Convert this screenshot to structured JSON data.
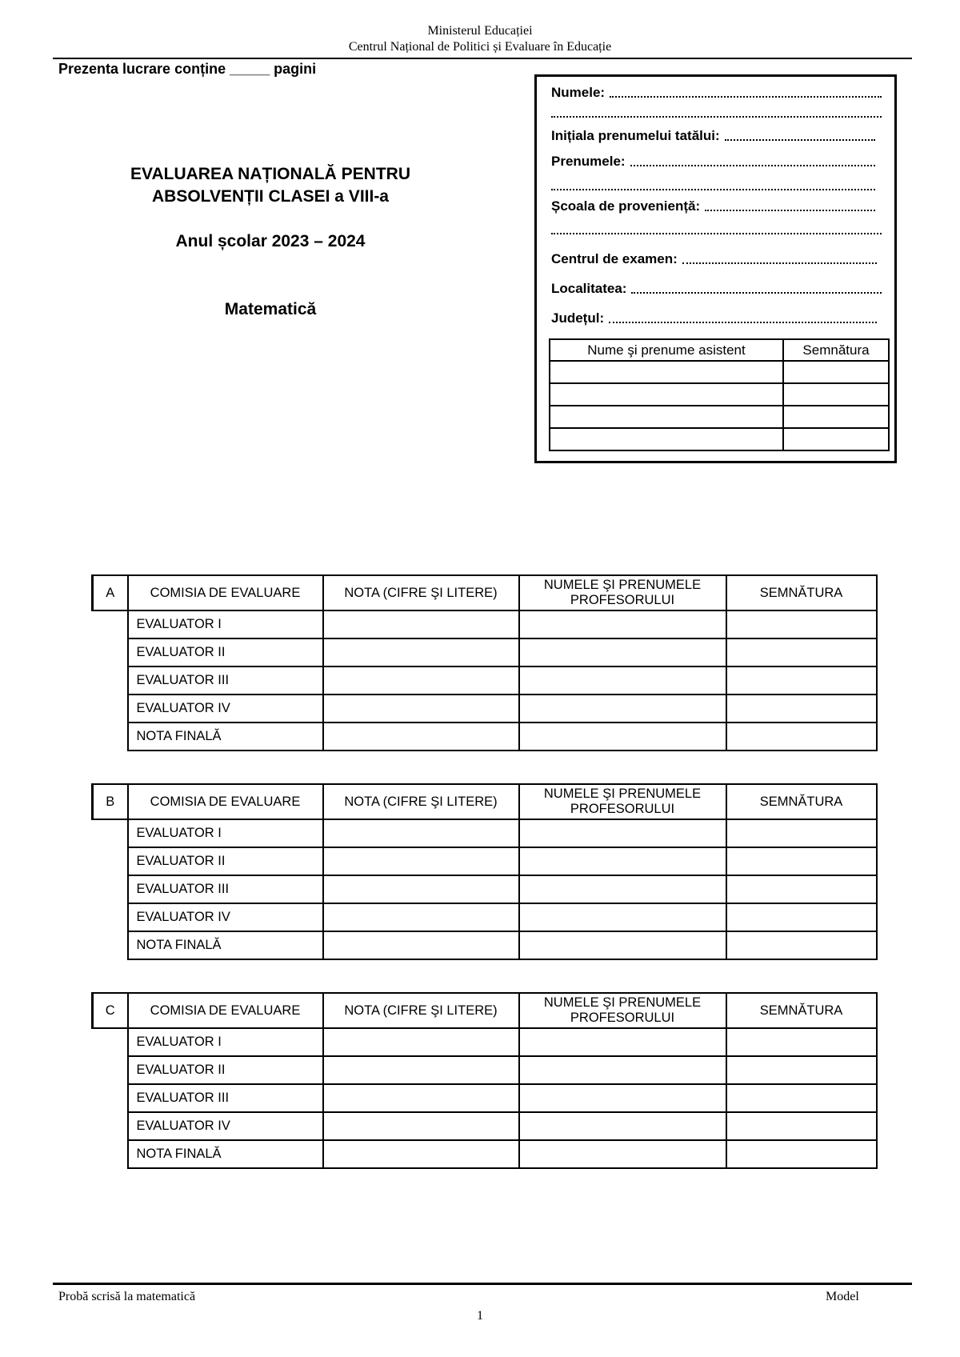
{
  "header": {
    "line1": "Ministerul Educației",
    "line2": "Centrul Național de Politici și Evaluare în Educație"
  },
  "pages_note": "Prezenta lucrare conține _____ pagini",
  "title": {
    "line1": "EVALUAREA NAȚIONALĂ PENTRU",
    "line2": "ABSOLVENȚII CLASEI a VIII-a",
    "year": "Anul școlar 2023 – 2024",
    "subject": "Matematică"
  },
  "student_box": {
    "fields": {
      "numele": "Numele:",
      "initiala": "Inițiala prenumelui tatălui:",
      "prenumele": "Prenumele:",
      "scoala": "Școala de proveniență:",
      "centrul": "Centrul de examen:",
      "localitatea": "Localitatea:",
      "judetul": "Județul:"
    },
    "assistant_table": {
      "headers": [
        "Nume şi prenume asistent",
        "Semnătura"
      ]
    }
  },
  "evaluation_tables": [
    {
      "letter": "A",
      "headers": [
        "COMISIA DE EVALUARE",
        "NOTA (CIFRE ŞI LITERE)",
        "NUMELE ŞI PRENUMELE PROFESORULUI",
        "SEMNĂTURA"
      ],
      "rows": [
        "EVALUATOR I",
        "EVALUATOR II",
        "EVALUATOR III",
        "EVALUATOR IV",
        "NOTA FINALĂ"
      ]
    },
    {
      "letter": "B",
      "headers": [
        "COMISIA DE EVALUARE",
        "NOTA (CIFRE ŞI LITERE)",
        "NUMELE ŞI PRENUMELE PROFESORULUI",
        "SEMNĂTURA"
      ],
      "rows": [
        "EVALUATOR I",
        "EVALUATOR II",
        "EVALUATOR III",
        "EVALUATOR IV",
        "NOTA FINALĂ"
      ]
    },
    {
      "letter": "C",
      "headers": [
        "COMISIA DE EVALUARE",
        "NOTA (CIFRE ŞI LITERE)",
        "NUMELE ŞI PRENUMELE PROFESORULUI",
        "SEMNĂTURA"
      ],
      "rows": [
        "EVALUATOR I",
        "EVALUATOR II",
        "EVALUATOR III",
        "EVALUATOR IV",
        "NOTA FINALĂ"
      ]
    }
  ],
  "footer": {
    "left": "Probă scrisă la matematică",
    "right": "Model",
    "page_number": "1"
  }
}
